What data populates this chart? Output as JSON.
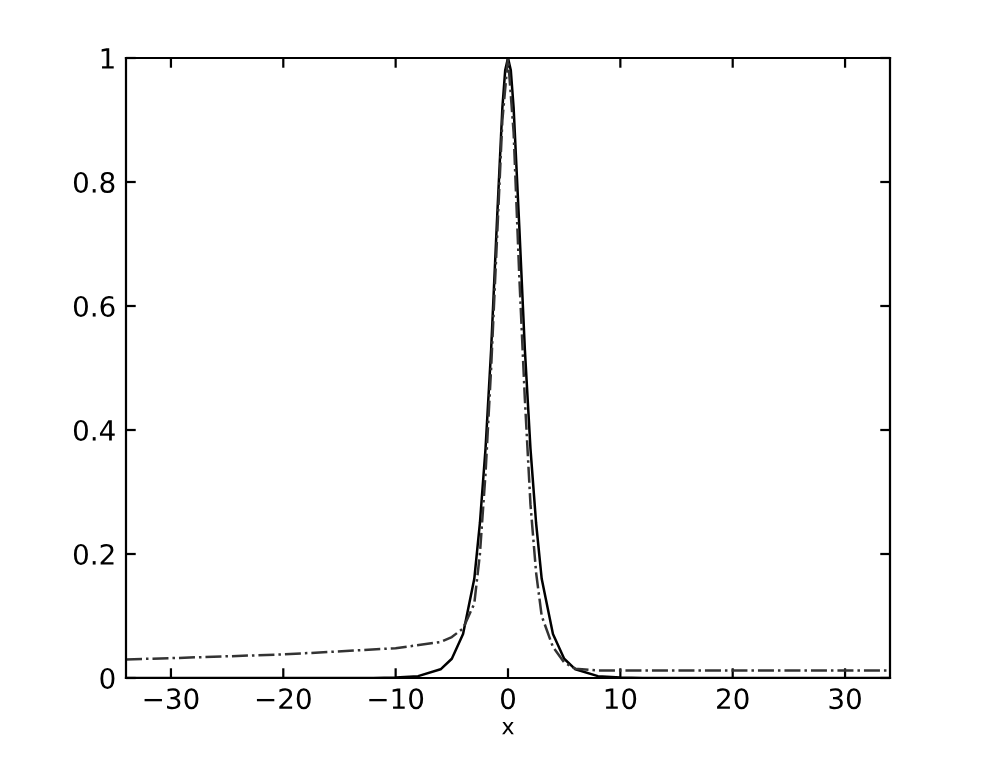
{
  "chart_data": {
    "type": "line",
    "xlabel": "x",
    "xlim": [
      -34,
      34
    ],
    "ylim": [
      0,
      1
    ],
    "xticks": [
      {
        "value": -30,
        "label": "−30"
      },
      {
        "value": -20,
        "label": "−20"
      },
      {
        "value": -10,
        "label": "−10"
      },
      0,
      10,
      20,
      30
    ],
    "yticks": [
      0,
      0.2,
      0.4,
      0.6,
      0.8,
      1
    ],
    "grid": false,
    "legend": false,
    "marker": "none",
    "series": [
      {
        "color": "#000000",
        "line_style": "solid",
        "x": [
          -34,
          -20,
          -12,
          -10,
          -8,
          -6,
          -5,
          -4,
          -3,
          -2.5,
          -2,
          -1.5,
          -1,
          -0.5,
          -0.25,
          0,
          0.25,
          0.5,
          1,
          1.5,
          2,
          2.5,
          3,
          4,
          5,
          6,
          8,
          10,
          12,
          20,
          34
        ],
        "values": [
          0,
          0,
          0,
          0.001,
          0.003,
          0.014,
          0.031,
          0.071,
          0.16,
          0.25,
          0.37,
          0.53,
          0.73,
          0.92,
          0.98,
          1,
          0.98,
          0.92,
          0.73,
          0.53,
          0.37,
          0.25,
          0.16,
          0.071,
          0.031,
          0.014,
          0.003,
          0.001,
          0,
          0,
          0
        ]
      },
      {
        "color": "#333333",
        "line_style": "dashdot",
        "x": [
          -34,
          -30,
          -20,
          -10,
          -6,
          -5,
          -4,
          -3,
          -2.5,
          -2,
          -1.5,
          -1,
          -0.5,
          0,
          0.5,
          1,
          1.5,
          2,
          2.5,
          3,
          4,
          5,
          6,
          8,
          20,
          34
        ],
        "values": [
          0.03,
          0.032,
          0.038,
          0.048,
          0.058,
          0.066,
          0.08,
          0.12,
          0.2,
          0.33,
          0.5,
          0.7,
          0.9,
          1,
          0.88,
          0.65,
          0.45,
          0.28,
          0.17,
          0.1,
          0.05,
          0.025,
          0.015,
          0.012,
          0.012,
          0.012
        ]
      }
    ]
  }
}
